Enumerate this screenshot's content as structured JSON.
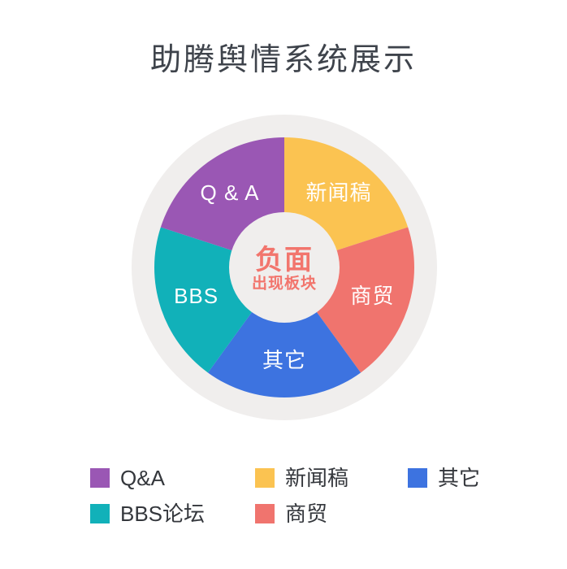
{
  "page": {
    "title": "助腾舆情系统展示",
    "title_color": "#3e434b",
    "background": "#ffffff"
  },
  "chart_data": {
    "type": "pie",
    "donut": true,
    "start_angle_deg": 0,
    "clockwise": true,
    "ring_color": "#f0eeed",
    "hole_color": "#f0eeed",
    "label_color": "#ffffff",
    "center_label": {
      "line1": "负面",
      "line2": "出现板块",
      "color": "#f2756d"
    },
    "segments": [
      {
        "label": "新闻稿",
        "value": 20,
        "color": "#fbc351"
      },
      {
        "label": "商贸",
        "value": 20,
        "color": "#f0746e"
      },
      {
        "label": "其它",
        "value": 20,
        "color": "#3d73e0"
      },
      {
        "label": "BBS",
        "value": 20,
        "color": "#11b1b9"
      },
      {
        "label": "Q & A",
        "value": 20,
        "color": "#9a57b4"
      }
    ],
    "legend": {
      "position": "bottom",
      "text_color": "#34373c",
      "items": [
        {
          "label": "Q&A",
          "color": "#9a57b4"
        },
        {
          "label": "新闻稿",
          "color": "#fbc351"
        },
        {
          "label": "其它",
          "color": "#3d73e0"
        },
        {
          "label": "BBS论坛",
          "color": "#11b1b9"
        },
        {
          "label": "商贸",
          "color": "#f0746e"
        }
      ]
    }
  }
}
